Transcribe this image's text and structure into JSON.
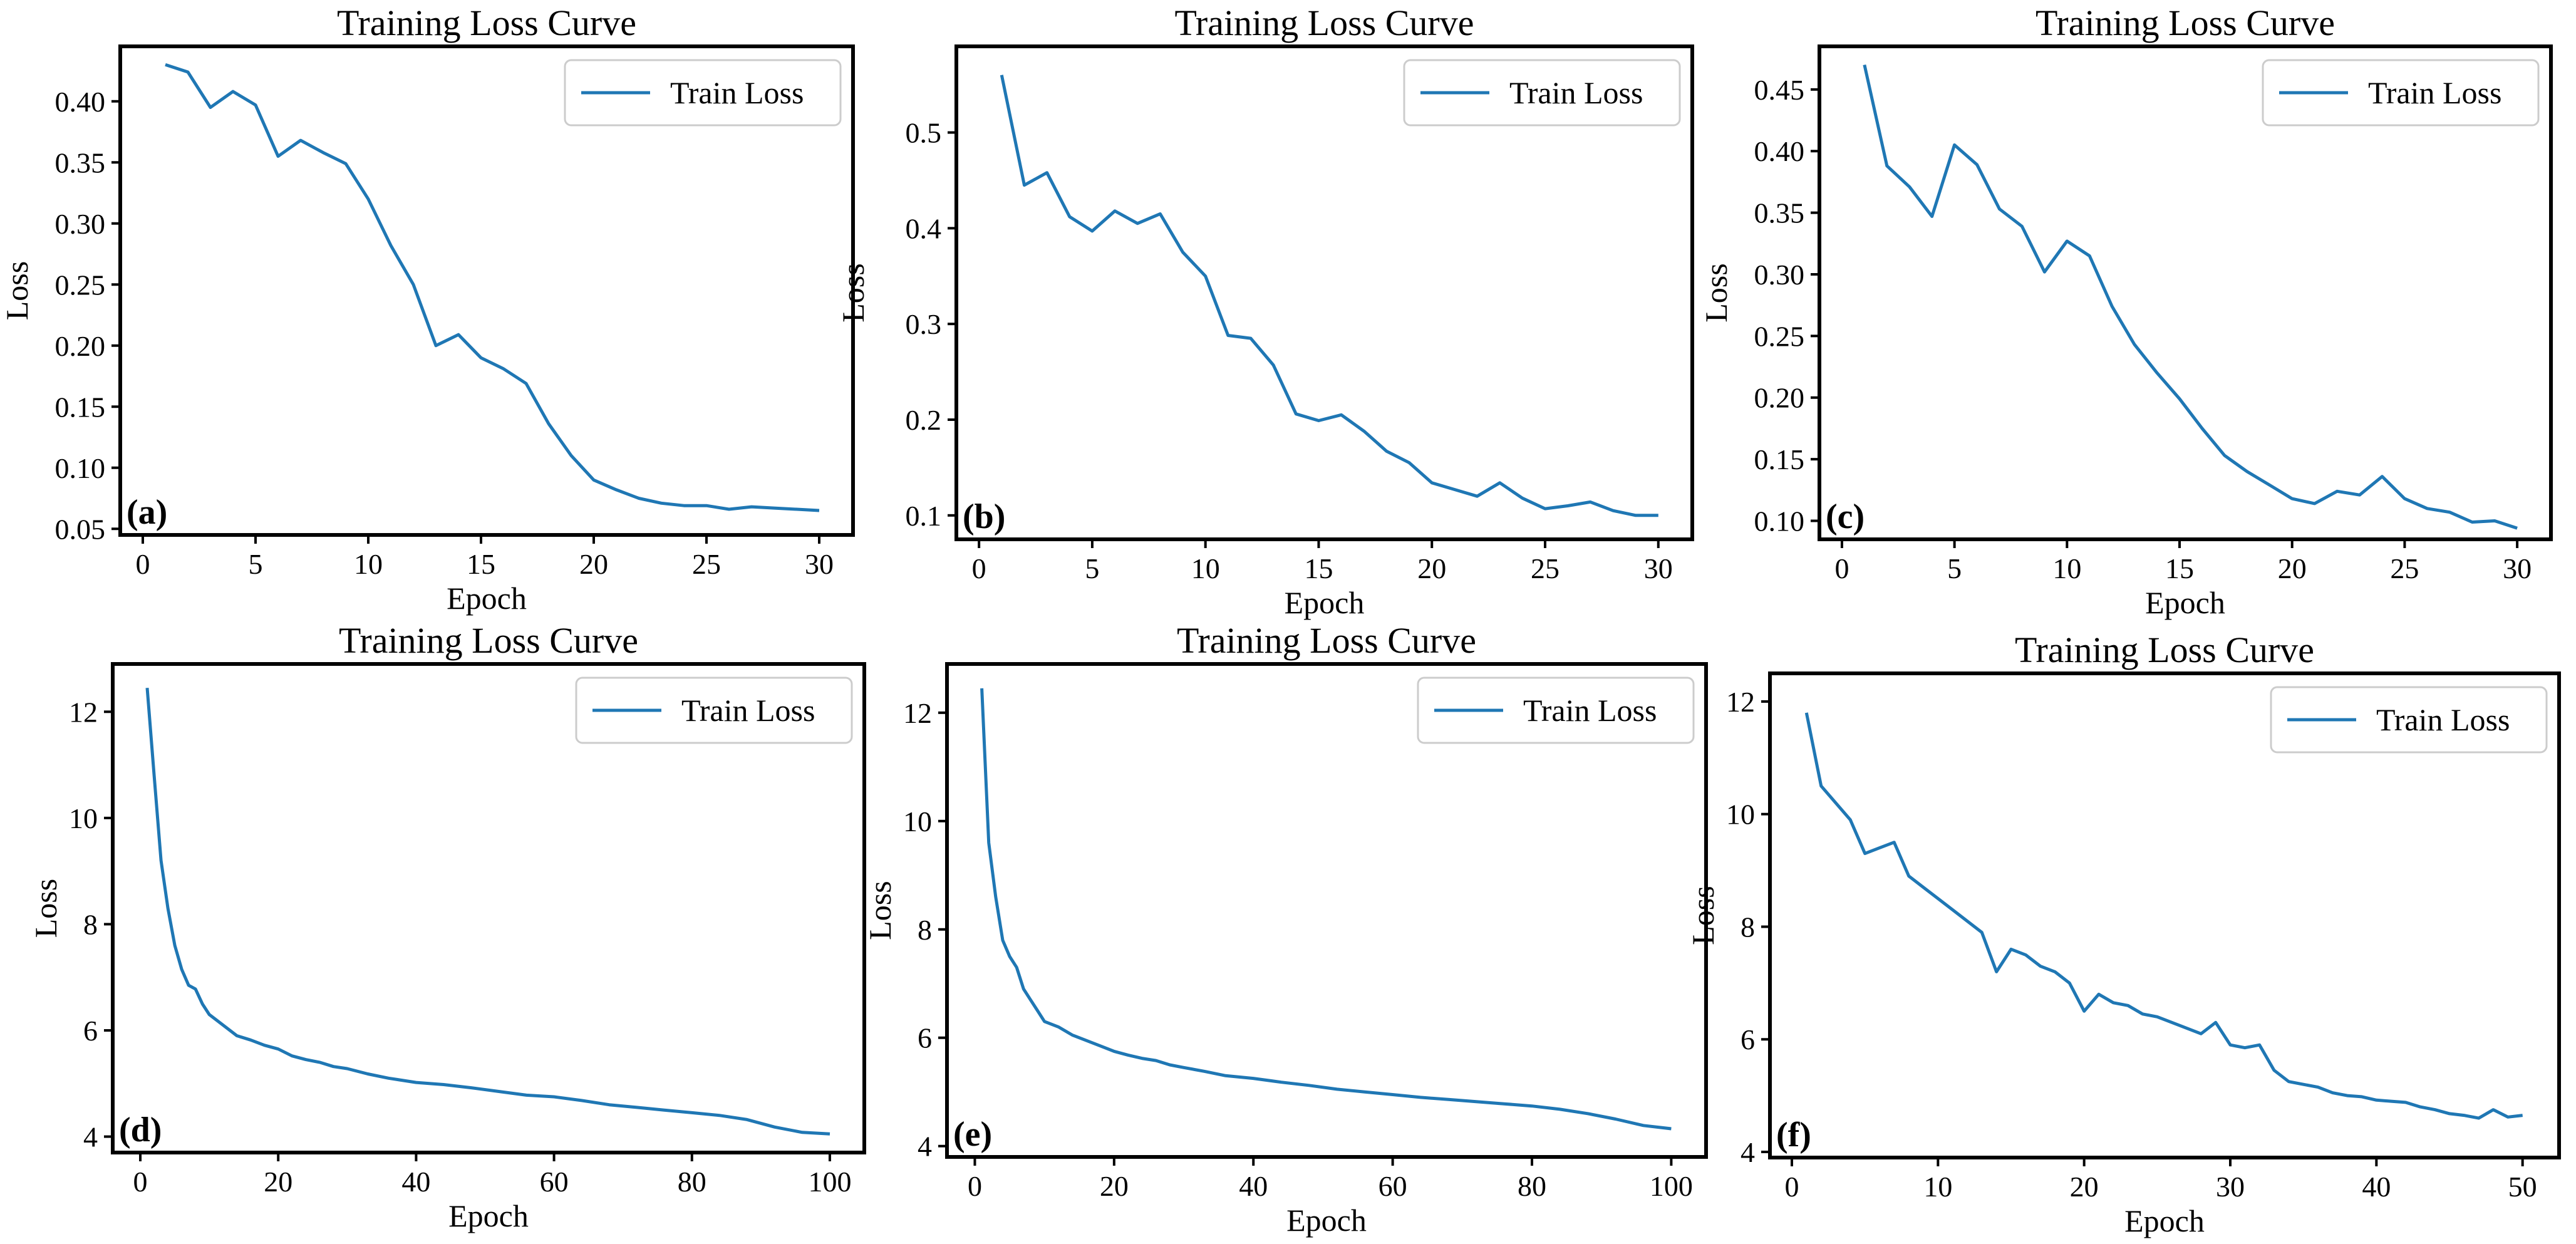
{
  "chart_data": [
    {
      "panel": "(a)",
      "type": "line",
      "title": "Training Loss Curve",
      "xlabel": "Epoch",
      "ylabel": "Loss",
      "xlim": [
        -1,
        31.5
      ],
      "ylim": [
        0.045,
        0.445
      ],
      "xticks": [
        0,
        5,
        10,
        15,
        20,
        25,
        30
      ],
      "yticks": [
        0.05,
        0.1,
        0.15,
        0.2,
        0.25,
        0.3,
        0.35,
        0.4
      ],
      "ytick_labels": [
        "0.05",
        "0.10",
        "0.15",
        "0.20",
        "0.25",
        "0.30",
        "0.35",
        "0.40"
      ],
      "legend_position": "top-right",
      "grid": false,
      "color": "#1f77b4",
      "series": [
        {
          "name": "Train Loss",
          "x": [
            1,
            2,
            3,
            4,
            5,
            6,
            7,
            8,
            9,
            10,
            11,
            12,
            13,
            14,
            15,
            16,
            17,
            18,
            19,
            20,
            21,
            22,
            23,
            24,
            25,
            26,
            27,
            28,
            29,
            30
          ],
          "y": [
            0.43,
            0.424,
            0.395,
            0.408,
            0.397,
            0.355,
            0.368,
            0.358,
            0.349,
            0.32,
            0.282,
            0.25,
            0.2,
            0.209,
            0.19,
            0.181,
            0.169,
            0.136,
            0.11,
            0.09,
            0.082,
            0.075,
            0.071,
            0.069,
            0.069,
            0.066,
            0.068,
            0.067,
            0.066,
            0.065
          ]
        }
      ]
    },
    {
      "panel": "(b)",
      "type": "line",
      "title": "Training Loss Curve",
      "xlabel": "Epoch",
      "ylabel": "Loss",
      "xlim": [
        -1,
        31.5
      ],
      "ylim": [
        0.075,
        0.59
      ],
      "xticks": [
        0,
        5,
        10,
        15,
        20,
        25,
        30
      ],
      "yticks": [
        0.1,
        0.2,
        0.3,
        0.4,
        0.5
      ],
      "ytick_labels": [
        "0.1",
        "0.2",
        "0.3",
        "0.4",
        "0.5"
      ],
      "legend_position": "top-right",
      "grid": false,
      "color": "#1f77b4",
      "series": [
        {
          "name": "Train Loss",
          "x": [
            1,
            2,
            3,
            4,
            5,
            6,
            7,
            8,
            9,
            10,
            11,
            12,
            13,
            14,
            15,
            16,
            17,
            18,
            19,
            20,
            21,
            22,
            23,
            24,
            25,
            26,
            27,
            28,
            29,
            30
          ],
          "y": [
            0.56,
            0.445,
            0.458,
            0.412,
            0.397,
            0.418,
            0.405,
            0.415,
            0.375,
            0.35,
            0.288,
            0.285,
            0.257,
            0.206,
            0.199,
            0.205,
            0.188,
            0.167,
            0.155,
            0.134,
            0.127,
            0.12,
            0.134,
            0.118,
            0.107,
            0.11,
            0.114,
            0.105,
            0.1,
            0.1
          ]
        }
      ]
    },
    {
      "panel": "(c)",
      "type": "line",
      "title": "Training Loss Curve",
      "xlabel": "Epoch",
      "ylabel": "Loss",
      "xlim": [
        -1,
        31.5
      ],
      "ylim": [
        0.085,
        0.485
      ],
      "xticks": [
        0,
        5,
        10,
        15,
        20,
        25,
        30
      ],
      "yticks": [
        0.1,
        0.15,
        0.2,
        0.25,
        0.3,
        0.35,
        0.4,
        0.45
      ],
      "ytick_labels": [
        "0.10",
        "0.15",
        "0.20",
        "0.25",
        "0.30",
        "0.35",
        "0.40",
        "0.45"
      ],
      "legend_position": "top-right",
      "grid": false,
      "color": "#1f77b4",
      "series": [
        {
          "name": "Train Loss",
          "x": [
            1,
            2,
            3,
            4,
            5,
            6,
            7,
            8,
            9,
            10,
            11,
            12,
            13,
            14,
            15,
            16,
            17,
            18,
            19,
            20,
            21,
            22,
            23,
            24,
            25,
            26,
            27,
            28,
            29,
            30
          ],
          "y": [
            0.47,
            0.388,
            0.371,
            0.347,
            0.405,
            0.389,
            0.353,
            0.339,
            0.302,
            0.327,
            0.315,
            0.274,
            0.243,
            0.22,
            0.199,
            0.175,
            0.153,
            0.14,
            0.129,
            0.118,
            0.114,
            0.124,
            0.121,
            0.136,
            0.118,
            0.11,
            0.107,
            0.099,
            0.1,
            0.094
          ]
        }
      ]
    },
    {
      "panel": "(d)",
      "type": "line",
      "title": "Training Loss Curve",
      "xlabel": "Epoch",
      "ylabel": "Loss",
      "xlim": [
        -4,
        105
      ],
      "ylim": [
        3.7,
        12.9
      ],
      "xticks": [
        0,
        20,
        40,
        60,
        80,
        100
      ],
      "yticks": [
        4,
        6,
        8,
        10,
        12
      ],
      "ytick_labels": [
        "4",
        "6",
        "8",
        "10",
        "12"
      ],
      "legend_position": "top-right",
      "grid": false,
      "color": "#1f77b4",
      "series": [
        {
          "name": "Train Loss",
          "x": [
            1,
            2,
            3,
            4,
            5,
            6,
            7,
            8,
            9,
            10,
            12,
            14,
            16,
            18,
            20,
            22,
            24,
            26,
            28,
            30,
            33,
            36,
            40,
            44,
            48,
            52,
            56,
            60,
            64,
            68,
            72,
            76,
            80,
            84,
            88,
            92,
            96,
            100
          ],
          "y": [
            12.45,
            10.8,
            9.2,
            8.3,
            7.6,
            7.15,
            6.85,
            6.78,
            6.5,
            6.3,
            6.1,
            5.9,
            5.82,
            5.72,
            5.65,
            5.52,
            5.45,
            5.4,
            5.32,
            5.28,
            5.18,
            5.1,
            5.02,
            4.98,
            4.92,
            4.85,
            4.78,
            4.75,
            4.68,
            4.6,
            4.55,
            4.5,
            4.45,
            4.4,
            4.32,
            4.18,
            4.08,
            4.05
          ]
        }
      ]
    },
    {
      "panel": "(e)",
      "type": "line",
      "title": "Training Loss Curve",
      "xlabel": "Epoch",
      "ylabel": "Loss",
      "xlim": [
        -4,
        105
      ],
      "ylim": [
        3.8,
        12.9
      ],
      "xticks": [
        0,
        20,
        40,
        60,
        80,
        100
      ],
      "yticks": [
        4,
        6,
        8,
        10,
        12
      ],
      "ytick_labels": [
        "4",
        "6",
        "8",
        "10",
        "12"
      ],
      "legend_position": "top-right",
      "grid": false,
      "color": "#1f77b4",
      "series": [
        {
          "name": "Train Loss",
          "x": [
            1,
            2,
            3,
            4,
            5,
            6,
            7,
            8,
            9,
            10,
            12,
            14,
            16,
            18,
            20,
            22,
            24,
            26,
            28,
            30,
            33,
            36,
            40,
            44,
            48,
            52,
            56,
            60,
            64,
            68,
            72,
            76,
            80,
            84,
            88,
            92,
            96,
            100
          ],
          "y": [
            12.45,
            9.6,
            8.6,
            7.8,
            7.5,
            7.3,
            6.9,
            6.7,
            6.5,
            6.3,
            6.2,
            6.05,
            5.95,
            5.85,
            5.75,
            5.68,
            5.62,
            5.58,
            5.5,
            5.45,
            5.38,
            5.3,
            5.25,
            5.18,
            5.12,
            5.05,
            5.0,
            4.95,
            4.9,
            4.86,
            4.82,
            4.78,
            4.74,
            4.68,
            4.6,
            4.5,
            4.38,
            4.32
          ]
        }
      ]
    },
    {
      "panel": "(f)",
      "type": "line",
      "title": "Training Loss Curve",
      "xlabel": "Epoch",
      "ylabel": "Loss",
      "xlim": [
        -1.5,
        52.5
      ],
      "ylim": [
        3.9,
        12.5
      ],
      "xticks": [
        0,
        10,
        20,
        30,
        40,
        50
      ],
      "yticks": [
        4,
        6,
        8,
        10,
        12
      ],
      "ytick_labels": [
        "4",
        "6",
        "8",
        "10",
        "12"
      ],
      "legend_position": "top-right",
      "grid": false,
      "color": "#1f77b4",
      "series": [
        {
          "name": "Train Loss",
          "x": [
            1,
            2,
            3,
            4,
            5,
            6,
            7,
            8,
            9,
            10,
            11,
            12,
            13,
            14,
            15,
            16,
            17,
            18,
            19,
            20,
            21,
            22,
            23,
            24,
            25,
            26,
            27,
            28,
            29,
            30,
            31,
            32,
            33,
            34,
            35,
            36,
            37,
            38,
            39,
            40,
            41,
            42,
            43,
            44,
            45,
            46,
            47,
            48,
            49,
            50
          ],
          "y": [
            11.8,
            10.5,
            10.2,
            9.9,
            9.3,
            9.4,
            9.5,
            8.9,
            8.7,
            8.5,
            8.3,
            8.1,
            7.9,
            7.2,
            7.6,
            7.5,
            7.3,
            7.2,
            7.0,
            6.5,
            6.8,
            6.65,
            6.6,
            6.45,
            6.4,
            6.3,
            6.2,
            6.1,
            6.3,
            5.9,
            5.85,
            5.9,
            5.45,
            5.25,
            5.2,
            5.15,
            5.05,
            5.0,
            4.98,
            4.92,
            4.9,
            4.88,
            4.8,
            4.75,
            4.68,
            4.65,
            4.6,
            4.75,
            4.62,
            4.65
          ]
        }
      ]
    }
  ]
}
